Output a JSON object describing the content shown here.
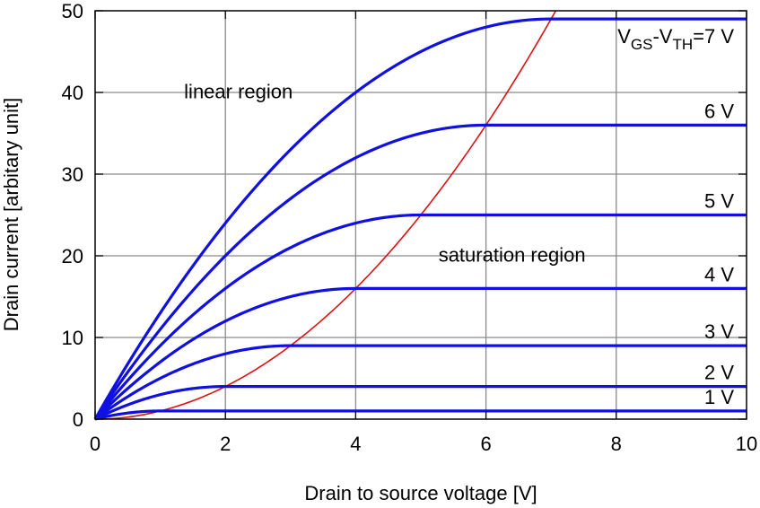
{
  "chart_data": {
    "type": "line",
    "title": "",
    "xlabel": "Drain to source voltage [V]",
    "ylabel": "Drain current [arbitary unit]",
    "xlim": [
      0,
      10
    ],
    "ylim": [
      0,
      50
    ],
    "x_ticks": [
      "0",
      "2",
      "4",
      "6",
      "8",
      "10"
    ],
    "y_ticks": [
      "0",
      "10",
      "20",
      "30",
      "40",
      "50"
    ],
    "grid": true,
    "colors": {
      "curves": "#1010e0",
      "boundary": "#e01010",
      "grid": "#8a8a8a"
    },
    "series": [
      {
        "label": "1 V",
        "vov": 1,
        "saturation_current": 1
      },
      {
        "label": "2 V",
        "vov": 2,
        "saturation_current": 4
      },
      {
        "label": "3 V",
        "vov": 3,
        "saturation_current": 9
      },
      {
        "label": "4 V",
        "vov": 4,
        "saturation_current": 16
      },
      {
        "label": "5 V",
        "vov": 5,
        "saturation_current": 25
      },
      {
        "label": "6 V",
        "vov": 6,
        "saturation_current": 36
      },
      {
        "label": "V_GS-V_TH=7 V",
        "vov": 7,
        "saturation_current": 49
      }
    ],
    "boundary_curve": {
      "equation": "I = V^2",
      "x_max": 7.07
    },
    "top_label": {
      "prefix": "V",
      "sub1": "GS",
      "mid": "-V",
      "sub2": "TH",
      "suffix": "=7 V"
    },
    "annotations": [
      {
        "text": "linear region",
        "x": 2.2,
        "y": 39.3
      },
      {
        "text": "saturation region",
        "x": 6.4,
        "y": 19.3
      }
    ]
  }
}
